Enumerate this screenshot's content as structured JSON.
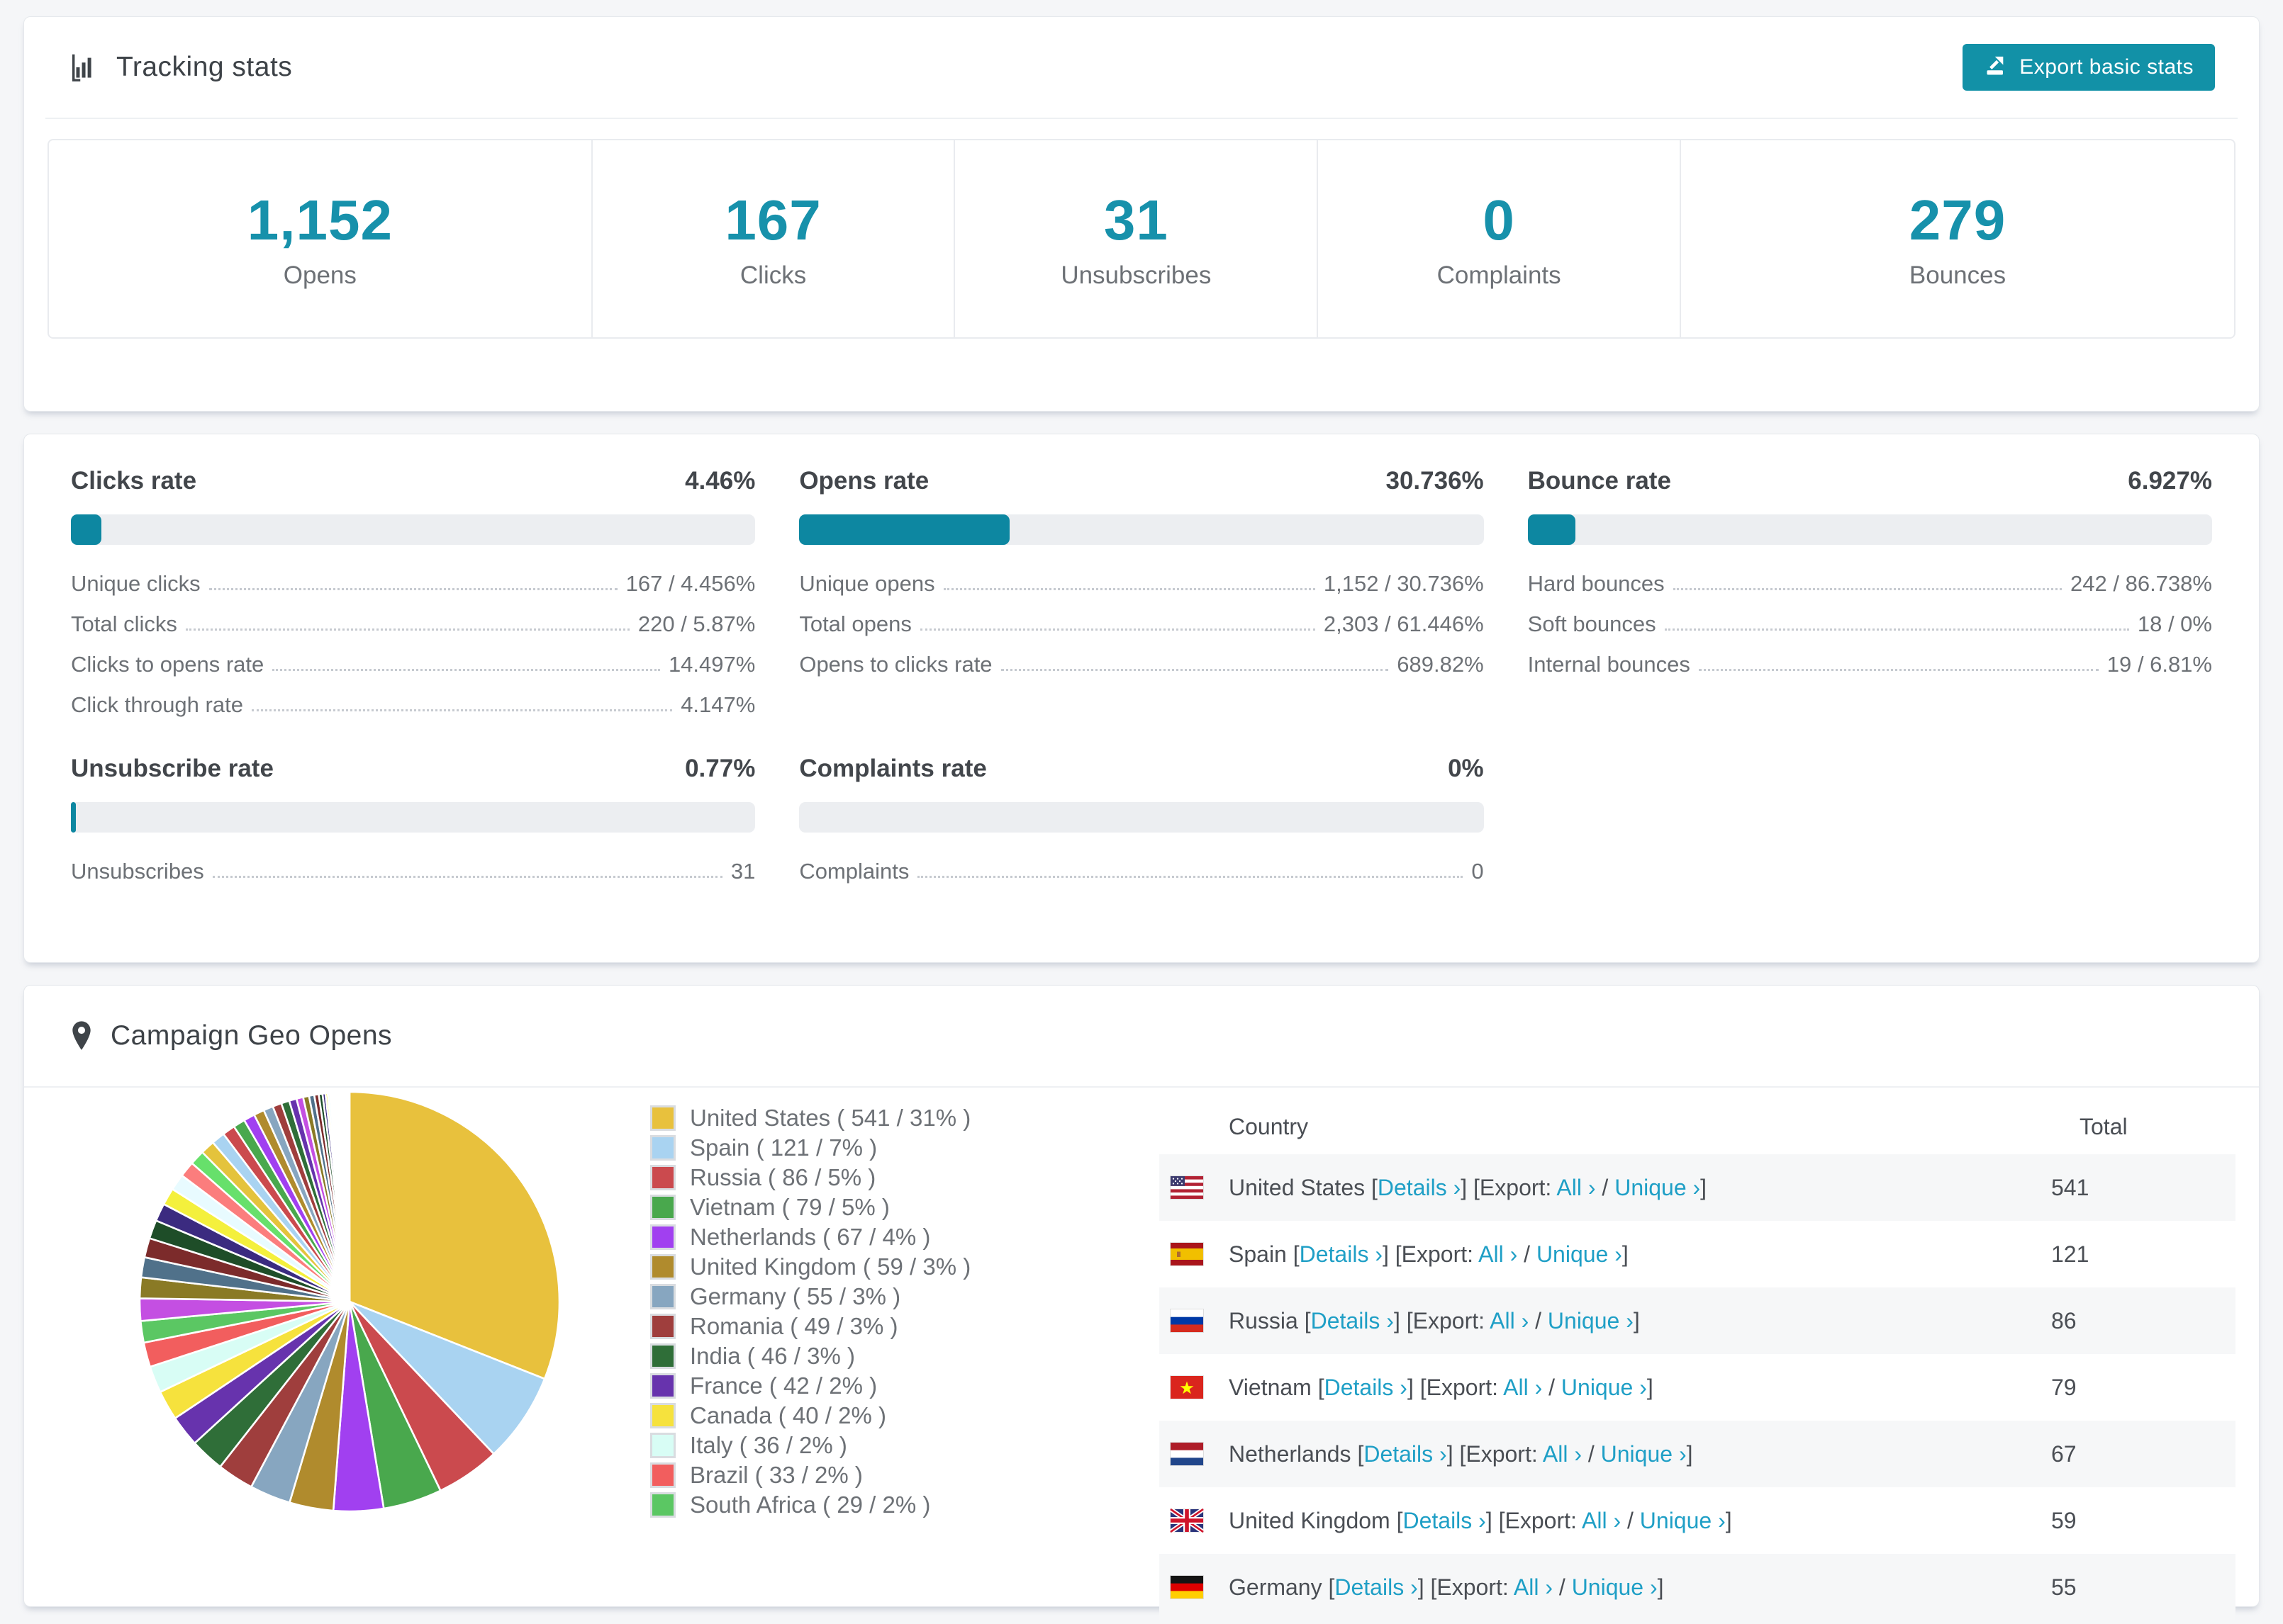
{
  "page": {
    "background": "#f5f6f8"
  },
  "colors": {
    "accent_teal": "#1291a7",
    "number_teal": "#1791ab",
    "bar_fill": "#0d87a1",
    "bar_track": "#eceef1",
    "link_teal": "#1f9fc6",
    "stripe_bg": "#f6f7f8",
    "text_dark": "#3f4449",
    "text_gray": "#6d7176"
  },
  "tracking": {
    "title": "Tracking stats",
    "icon": "bar-chart-icon",
    "export_button": {
      "label": "Export basic stats",
      "icon": "export-icon"
    },
    "summary_stats": [
      {
        "value": "1,152",
        "label": "Opens"
      },
      {
        "value": "167",
        "label": "Clicks"
      },
      {
        "value": "31",
        "label": "Unsubscribes"
      },
      {
        "value": "0",
        "label": "Complaints"
      },
      {
        "value": "279",
        "label": "Bounces"
      }
    ]
  },
  "rates": [
    {
      "title": "Clicks rate",
      "value": "4.46%",
      "percent": 4.46,
      "rows": [
        {
          "label": "Unique clicks",
          "value": "167 / 4.456%"
        },
        {
          "label": "Total clicks",
          "value": "220 / 5.87%"
        },
        {
          "label": "Clicks to opens rate",
          "value": "14.497%"
        },
        {
          "label": "Click through rate",
          "value": "4.147%"
        }
      ]
    },
    {
      "title": "Opens rate",
      "value": "30.736%",
      "percent": 30.736,
      "rows": [
        {
          "label": "Unique opens",
          "value": "1,152 / 30.736%"
        },
        {
          "label": "Total opens",
          "value": "2,303 / 61.446%"
        },
        {
          "label": "Opens to clicks rate",
          "value": "689.82%"
        }
      ]
    },
    {
      "title": "Bounce rate",
      "value": "6.927%",
      "percent": 6.927,
      "rows": [
        {
          "label": "Hard bounces",
          "value": "242 / 86.738%"
        },
        {
          "label": "Soft bounces",
          "value": "18 / 0%"
        },
        {
          "label": "Internal bounces",
          "value": "19 / 6.81%"
        }
      ]
    },
    {
      "title": "Unsubscribe rate",
      "value": "0.77%",
      "percent": 0.77,
      "rows": [
        {
          "label": "Unsubscribes",
          "value": "31"
        }
      ]
    },
    {
      "title": "Complaints rate",
      "value": "0%",
      "percent": 0,
      "rows": [
        {
          "label": "Complaints",
          "value": "0"
        }
      ]
    }
  ],
  "geo": {
    "title": "Campaign Geo Opens",
    "icon": "map-pin-icon",
    "chart_data": {
      "type": "pie",
      "title": "Campaign Geo Opens",
      "unit": "opens",
      "labels": [
        "United States",
        "Spain",
        "Russia",
        "Vietnam",
        "Netherlands",
        "United Kingdom",
        "Germany",
        "Romania",
        "India",
        "France",
        "Canada",
        "Italy",
        "Brazil",
        "South Africa"
      ],
      "values": [
        541,
        121,
        86,
        79,
        67,
        59,
        55,
        49,
        46,
        42,
        40,
        36,
        33,
        29
      ],
      "pct_labels": [
        "31%",
        "7%",
        "5%",
        "5%",
        "4%",
        "3%",
        "3%",
        "3%",
        "3%",
        "2%",
        "2%",
        "2%",
        "2%",
        "2%"
      ],
      "colors": [
        "#e8c13d",
        "#a9d3f1",
        "#cb4a4e",
        "#49a84d",
        "#a140f0",
        "#b08b2d",
        "#87a6c0",
        "#9f3e3d",
        "#2f6e38",
        "#6733ad",
        "#f6e23d",
        "#d8fdf5",
        "#f25e5e",
        "#5bc763"
      ],
      "other_slices_estimated": [
        30,
        28,
        27,
        26,
        25,
        24,
        23,
        22,
        21,
        20,
        19,
        18,
        17,
        16,
        15,
        14,
        13,
        12,
        11,
        10,
        9,
        8,
        7,
        6,
        5,
        4,
        3,
        3,
        2,
        2,
        2,
        2,
        2,
        2,
        1,
        1,
        1,
        1,
        1,
        1,
        1,
        1,
        1,
        1,
        1,
        1,
        1,
        1
      ],
      "start_angle": "12 o'clock",
      "direction": "clockwise",
      "legend_position": "right"
    },
    "table": {
      "columns": [
        "Country",
        "Total"
      ],
      "links": {
        "details": "Details",
        "export_prefix": "Export:",
        "all": "All",
        "unique": "Unique",
        "chevron": "›"
      },
      "rows": [
        {
          "country": "United States",
          "flag": "us",
          "total": "541"
        },
        {
          "country": "Spain",
          "flag": "es",
          "total": "121"
        },
        {
          "country": "Russia",
          "flag": "ru",
          "total": "86"
        },
        {
          "country": "Vietnam",
          "flag": "vn",
          "total": "79"
        },
        {
          "country": "Netherlands",
          "flag": "nl",
          "total": "67"
        },
        {
          "country": "United Kingdom",
          "flag": "gb",
          "total": "59"
        },
        {
          "country": "Germany",
          "flag": "de",
          "total": "55"
        }
      ]
    }
  }
}
